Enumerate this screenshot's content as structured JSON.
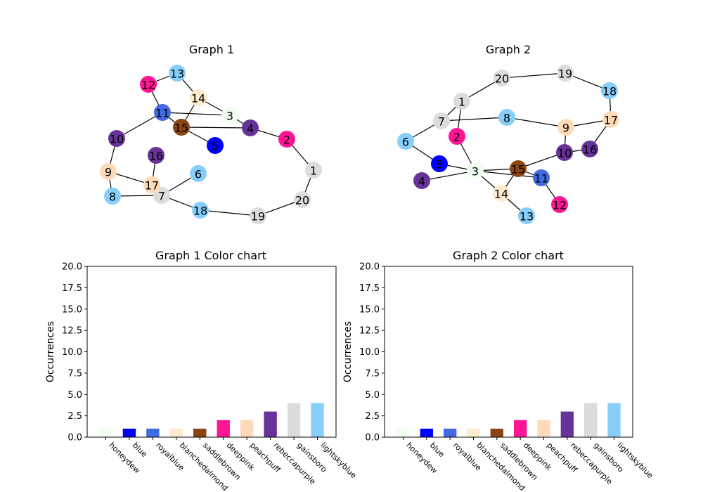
{
  "colors": {
    "honeydew": "#f0fff0",
    "blue": "#0000ff",
    "royalblue": "#4169e1",
    "blanchedalmond": "#ffebcd",
    "saddlebrown": "#8b4513",
    "deeppink": "#ff1493",
    "peachpuff": "#ffdab9",
    "rebeccapurple": "#663399",
    "gainsboro": "#dcdcdc",
    "lightskyblue": "#87cefa"
  },
  "graphs": [
    {
      "title": "Graph 1",
      "nodes": [
        {
          "id": "1",
          "color": "gainsboro"
        },
        {
          "id": "2",
          "color": "deeppink"
        },
        {
          "id": "3",
          "color": "honeydew"
        },
        {
          "id": "4",
          "color": "rebeccapurple"
        },
        {
          "id": "5",
          "color": "blue"
        },
        {
          "id": "6",
          "color": "lightskyblue"
        },
        {
          "id": "7",
          "color": "gainsboro"
        },
        {
          "id": "8",
          "color": "lightskyblue"
        },
        {
          "id": "9",
          "color": "peachpuff"
        },
        {
          "id": "10",
          "color": "rebeccapurple"
        },
        {
          "id": "11",
          "color": "royalblue"
        },
        {
          "id": "12",
          "color": "deeppink"
        },
        {
          "id": "13",
          "color": "lightskyblue"
        },
        {
          "id": "14",
          "color": "blanchedalmond"
        },
        {
          "id": "15",
          "color": "saddlebrown"
        },
        {
          "id": "16",
          "color": "rebeccapurple"
        },
        {
          "id": "17",
          "color": "peachpuff"
        },
        {
          "id": "18",
          "color": "lightskyblue"
        },
        {
          "id": "19",
          "color": "gainsboro"
        },
        {
          "id": "20",
          "color": "gainsboro"
        }
      ],
      "edges": [
        [
          "12",
          "13"
        ],
        [
          "13",
          "14"
        ],
        [
          "12",
          "11"
        ],
        [
          "14",
          "15"
        ],
        [
          "11",
          "3"
        ],
        [
          "11",
          "15"
        ],
        [
          "14",
          "3"
        ],
        [
          "3",
          "4"
        ],
        [
          "15",
          "4"
        ],
        [
          "4",
          "2"
        ],
        [
          "15",
          "5"
        ],
        [
          "11",
          "10"
        ],
        [
          "10",
          "9"
        ],
        [
          "9",
          "17"
        ],
        [
          "9",
          "8"
        ],
        [
          "16",
          "17"
        ],
        [
          "17",
          "7"
        ],
        [
          "8",
          "7"
        ],
        [
          "7",
          "6"
        ],
        [
          "7",
          "18"
        ],
        [
          "18",
          "19"
        ],
        [
          "19",
          "20"
        ],
        [
          "20",
          "1"
        ],
        [
          "1",
          "2"
        ]
      ]
    },
    {
      "title": "Graph 2",
      "nodes": [
        {
          "id": "1",
          "color": "gainsboro"
        },
        {
          "id": "2",
          "color": "deeppink"
        },
        {
          "id": "3",
          "color": "honeydew"
        },
        {
          "id": "4",
          "color": "rebeccapurple"
        },
        {
          "id": "5",
          "color": "blue"
        },
        {
          "id": "6",
          "color": "lightskyblue"
        },
        {
          "id": "7",
          "color": "gainsboro"
        },
        {
          "id": "8",
          "color": "lightskyblue"
        },
        {
          "id": "9",
          "color": "peachpuff"
        },
        {
          "id": "10",
          "color": "rebeccapurple"
        },
        {
          "id": "11",
          "color": "royalblue"
        },
        {
          "id": "12",
          "color": "deeppink"
        },
        {
          "id": "13",
          "color": "lightskyblue"
        },
        {
          "id": "14",
          "color": "blanchedalmond"
        },
        {
          "id": "15",
          "color": "saddlebrown"
        },
        {
          "id": "16",
          "color": "rebeccapurple"
        },
        {
          "id": "17",
          "color": "peachpuff"
        },
        {
          "id": "18",
          "color": "lightskyblue"
        },
        {
          "id": "19",
          "color": "gainsboro"
        },
        {
          "id": "20",
          "color": "gainsboro"
        }
      ],
      "edges": [
        [
          "20",
          "19"
        ],
        [
          "20",
          "1"
        ],
        [
          "19",
          "18"
        ],
        [
          "18",
          "17"
        ],
        [
          "1",
          "7"
        ],
        [
          "1",
          "2"
        ],
        [
          "7",
          "6"
        ],
        [
          "7",
          "8"
        ],
        [
          "8",
          "9"
        ],
        [
          "17",
          "9"
        ],
        [
          "17",
          "16"
        ],
        [
          "16",
          "10"
        ],
        [
          "9",
          "10"
        ],
        [
          "6",
          "5"
        ],
        [
          "5",
          "3"
        ],
        [
          "4",
          "3"
        ],
        [
          "2",
          "3"
        ],
        [
          "3",
          "15"
        ],
        [
          "3",
          "11"
        ],
        [
          "3",
          "14"
        ],
        [
          "15",
          "10"
        ],
        [
          "15",
          "11"
        ],
        [
          "11",
          "12"
        ],
        [
          "14",
          "13"
        ],
        [
          "14",
          "15"
        ]
      ]
    }
  ],
  "chart_data": [
    {
      "type": "bar",
      "title": "Graph 1 Color chart",
      "xlabel": "",
      "ylabel": "Occurrences",
      "categories": [
        "honeydew",
        "blue",
        "royalblue",
        "blanchedalmond",
        "saddlebrown",
        "deeppink",
        "peachpuff",
        "rebeccapurple",
        "gainsboro",
        "lightskyblue"
      ],
      "values": [
        1,
        1,
        1,
        1,
        1,
        2,
        2,
        3,
        4,
        4
      ],
      "ylim": [
        0,
        20
      ],
      "yticks": [
        "0.0",
        "2.5",
        "5.0",
        "7.5",
        "10.0",
        "12.5",
        "15.0",
        "17.5",
        "20.0"
      ],
      "grid": false
    },
    {
      "type": "bar",
      "title": "Graph 2 Color chart",
      "xlabel": "",
      "ylabel": "Occurrences",
      "categories": [
        "honeydew",
        "blue",
        "royalblue",
        "blanchedalmond",
        "saddlebrown",
        "deeppink",
        "peachpuff",
        "rebeccapurple",
        "gainsboro",
        "lightskyblue"
      ],
      "values": [
        1,
        1,
        1,
        1,
        1,
        2,
        2,
        3,
        4,
        4
      ],
      "ylim": [
        0,
        20
      ],
      "yticks": [
        "0.0",
        "2.5",
        "5.0",
        "7.5",
        "10.0",
        "12.5",
        "15.0",
        "17.5",
        "20.0"
      ],
      "grid": false
    }
  ]
}
